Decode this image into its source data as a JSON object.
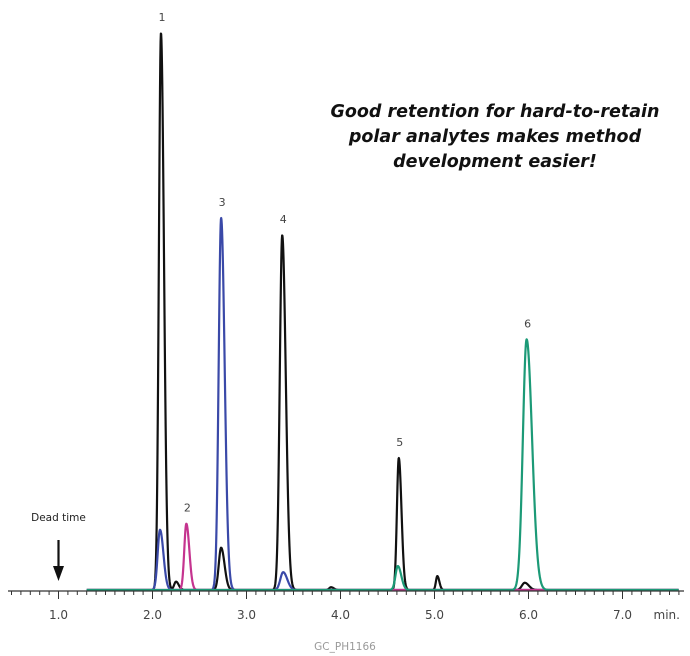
{
  "callout": {
    "line1": "Good retention for hard-to-retain",
    "line2": "polar analytes makes method",
    "line3": "development easier!"
  },
  "figure_code": "GC_PH1166",
  "colors": {
    "black": "#111111",
    "blue": "#3a49a8",
    "magenta": "#c5348f",
    "green": "#1c9a77",
    "axis": "#333333"
  },
  "chart_data": {
    "type": "line",
    "x_unit_label": "min.",
    "xlim": [
      0.5,
      7.8
    ],
    "ylim": [
      0,
      100
    ],
    "x_ticks": [
      "1.0",
      "2.0",
      "3.0",
      "4.0",
      "5.0",
      "6.0",
      "7.0"
    ],
    "dead_time": {
      "label": "Dead time",
      "x": 1.0
    },
    "series": [
      {
        "color": "black",
        "peaks": [
          {
            "x": 2.09,
            "y": 100,
            "sigma": 0.022
          },
          {
            "x": 2.25,
            "y": 1.5,
            "sigma": 0.02
          },
          {
            "x": 2.73,
            "y": 7.6,
            "sigma": 0.025
          },
          {
            "x": 3.38,
            "y": 63.7,
            "sigma": 0.026
          },
          {
            "x": 3.9,
            "y": 0.5,
            "sigma": 0.02
          },
          {
            "x": 4.62,
            "y": 23.7,
            "sigma": 0.02
          },
          {
            "x": 5.03,
            "y": 2.5,
            "sigma": 0.015
          },
          {
            "x": 5.96,
            "y": 1.3,
            "sigma": 0.03
          }
        ]
      },
      {
        "color": "blue",
        "peaks": [
          {
            "x": 2.08,
            "y": 10.8,
            "sigma": 0.025
          },
          {
            "x": 2.73,
            "y": 66.8,
            "sigma": 0.026
          },
          {
            "x": 3.39,
            "y": 3.2,
            "sigma": 0.03
          }
        ]
      },
      {
        "color": "magenta",
        "peaks": [
          {
            "x": 2.36,
            "y": 11.9,
            "sigma": 0.022
          }
        ]
      },
      {
        "color": "green",
        "peaks": [
          {
            "x": 4.61,
            "y": 4.3,
            "sigma": 0.025
          },
          {
            "x": 5.98,
            "y": 45,
            "sigma": 0.04
          }
        ]
      }
    ],
    "peak_labels": [
      {
        "label": "1",
        "x": 2.09,
        "y": 100
      },
      {
        "label": "2",
        "x": 2.36,
        "y": 11.9
      },
      {
        "label": "3",
        "x": 2.73,
        "y": 66.8
      },
      {
        "label": "4",
        "x": 3.38,
        "y": 63.7
      },
      {
        "label": "5",
        "x": 4.62,
        "y": 23.7
      },
      {
        "label": "6",
        "x": 5.98,
        "y": 45
      }
    ]
  }
}
